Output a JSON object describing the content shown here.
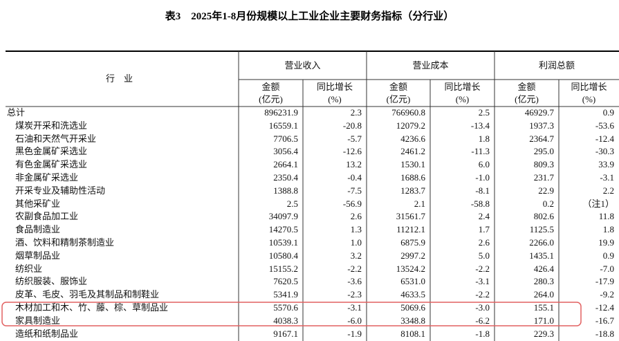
{
  "title": "表3　2025年1-8月份规模以上工业企业主要财务指标（分行业）",
  "table": {
    "industry_header": "行　业",
    "groups": [
      "营业收入",
      "营业成本",
      "利润总额"
    ],
    "subheaders": [
      {
        "label": "金额",
        "unit": "(亿元)"
      },
      {
        "label": "同比增长",
        "unit": "(%)"
      },
      {
        "label": "金额",
        "unit": "(亿元)"
      },
      {
        "label": "同比增长",
        "unit": "(%)"
      },
      {
        "label": "金额",
        "unit": "(亿元)"
      },
      {
        "label": "同比增长",
        "unit": "(%)"
      }
    ],
    "rows": [
      [
        "总计",
        "896231.9",
        "2.3",
        "766960.8",
        "2.5",
        "46929.7",
        "0.9"
      ],
      [
        "煤炭开采和洗选业",
        "16559.1",
        "-20.8",
        "12079.2",
        "-13.4",
        "1937.3",
        "-53.6"
      ],
      [
        "石油和天然气开采业",
        "7706.5",
        "-5.7",
        "4236.6",
        "1.8",
        "2364.7",
        "-12.4"
      ],
      [
        "黑色金属矿采选业",
        "3056.4",
        "-12.6",
        "2461.2",
        "-11.3",
        "295.0",
        "-30.3"
      ],
      [
        "有色金属矿采选业",
        "2664.1",
        "13.2",
        "1530.1",
        "6.0",
        "809.3",
        "33.9"
      ],
      [
        "非金属矿采选业",
        "2350.4",
        "-0.4",
        "1688.6",
        "-1.0",
        "231.7",
        "-3.1"
      ],
      [
        "开采专业及辅助性活动",
        "1388.8",
        "-7.5",
        "1283.7",
        "-8.1",
        "22.9",
        "2.2"
      ],
      [
        "其他采矿业",
        "2.5",
        "-56.9",
        "2.1",
        "-58.8",
        "0.2",
        "（注1）"
      ],
      [
        "农副食品加工业",
        "34097.9",
        "2.6",
        "31561.7",
        "2.4",
        "802.6",
        "11.8"
      ],
      [
        "食品制造业",
        "14270.5",
        "1.3",
        "11212.1",
        "1.7",
        "1125.5",
        "1.8"
      ],
      [
        "酒、饮料和精制茶制造业",
        "10539.1",
        "1.0",
        "6875.9",
        "2.6",
        "2266.0",
        "19.9"
      ],
      [
        "烟草制品业",
        "10580.4",
        "3.2",
        "2997.2",
        "5.0",
        "1435.1",
        "0.9"
      ],
      [
        "纺织业",
        "15155.2",
        "-2.2",
        "13524.2",
        "-2.2",
        "426.4",
        "-7.0"
      ],
      [
        "纺织服装、服饰业",
        "7620.5",
        "-3.6",
        "6531.0",
        "-3.1",
        "280.3",
        "-17.9"
      ],
      [
        "皮革、毛皮、羽毛及其制品和制鞋业",
        "5341.9",
        "-2.3",
        "4633.5",
        "-2.2",
        "264.0",
        "-9.2"
      ],
      [
        "木材加工和木、竹、藤、棕、草制品业",
        "5570.6",
        "-3.1",
        "5069.6",
        "-3.0",
        "155.1",
        "-12.4"
      ],
      [
        "家具制造业",
        "4038.3",
        "-6.0",
        "3348.8",
        "-6.2",
        "171.0",
        "-16.7"
      ],
      [
        "造纸和纸制品业",
        "9167.1",
        "-1.9",
        "8108.1",
        "-1.8",
        "229.3",
        "-18.8"
      ]
    ]
  }
}
